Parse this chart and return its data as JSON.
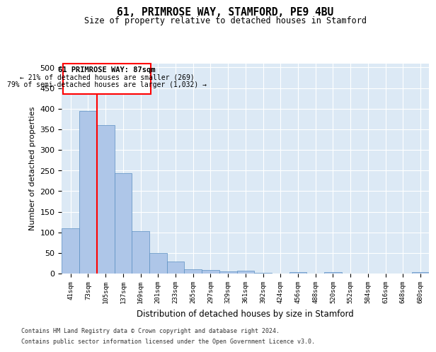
{
  "title_line1": "61, PRIMROSE WAY, STAMFORD, PE9 4BU",
  "title_line2": "Size of property relative to detached houses in Stamford",
  "xlabel": "Distribution of detached houses by size in Stamford",
  "ylabel": "Number of detached properties",
  "bar_labels": [
    "41sqm",
    "73sqm",
    "105sqm",
    "137sqm",
    "169sqm",
    "201sqm",
    "233sqm",
    "265sqm",
    "297sqm",
    "329sqm",
    "361sqm",
    "392sqm",
    "424sqm",
    "456sqm",
    "488sqm",
    "520sqm",
    "552sqm",
    "584sqm",
    "616sqm",
    "648sqm",
    "680sqm"
  ],
  "bar_values": [
    110,
    395,
    360,
    243,
    103,
    50,
    30,
    10,
    8,
    6,
    7,
    2,
    0,
    4,
    0,
    3,
    0,
    0,
    0,
    0,
    4
  ],
  "bar_color": "#aec6e8",
  "bar_edge_color": "#5a8fc2",
  "background_color": "#dce9f5",
  "grid_color": "#ffffff",
  "ylim": [
    0,
    510
  ],
  "yticks": [
    0,
    50,
    100,
    150,
    200,
    250,
    300,
    350,
    400,
    450,
    500
  ],
  "property_label": "61 PRIMROSE WAY: 87sqm",
  "annotation_line1": "← 21% of detached houses are smaller (269)",
  "annotation_line2": "79% of semi-detached houses are larger (1,032) →",
  "vline_x": 1.5,
  "footer_line1": "Contains HM Land Registry data © Crown copyright and database right 2024.",
  "footer_line2": "Contains public sector information licensed under the Open Government Licence v3.0."
}
